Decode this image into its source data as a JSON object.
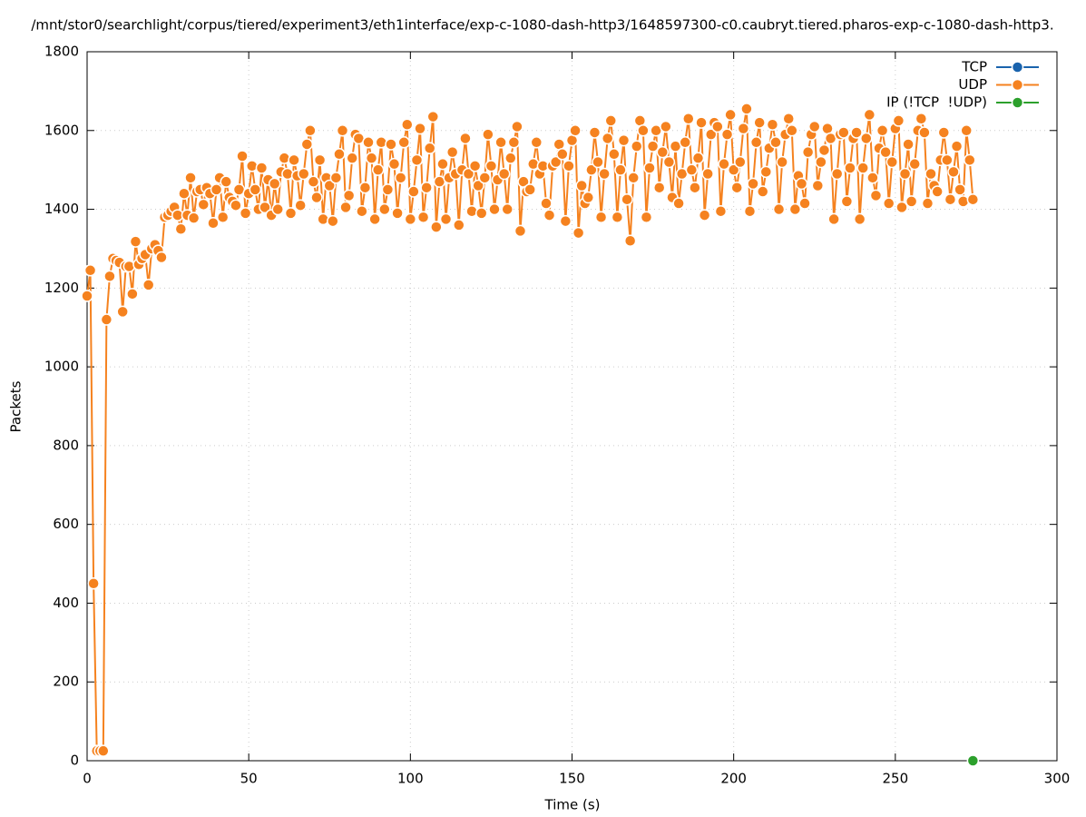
{
  "chart_data": {
    "type": "line",
    "title": "/mnt/stor0/searchlight/corpus/tiered/experiment3/eth1interface/exp-c-1080-dash-http3/1648597300-c0.caubryt.tiered.pharos-exp-c-1080-dash-http3.",
    "x_label": "Time (s)",
    "y_label": "Packets",
    "xlim": [
      0,
      300
    ],
    "xticks": [
      0,
      50,
      100,
      150,
      200,
      250,
      300
    ],
    "ylim": [
      0,
      1800
    ],
    "yticks": [
      0,
      200,
      400,
      600,
      800,
      1000,
      1200,
      1400,
      1600,
      1800
    ],
    "grid": true,
    "legend": "top right",
    "series": [
      {
        "name": "TCP",
        "color": "#1a63ad",
        "x": [],
        "values": []
      },
      {
        "name": "UDP",
        "color": "#f5821f",
        "x": [
          0,
          1,
          2,
          3,
          4,
          5,
          6,
          7,
          8,
          9,
          10,
          11,
          12,
          13,
          14,
          15,
          16,
          17,
          18,
          19,
          20,
          21,
          22,
          23,
          24,
          25,
          26,
          27,
          28,
          29,
          30,
          31,
          32,
          33,
          34,
          35,
          36,
          37,
          38,
          39,
          40,
          41,
          42,
          43,
          44,
          45,
          46,
          47,
          48,
          49,
          50,
          51,
          52,
          53,
          54,
          55,
          56,
          57,
          58,
          59,
          60,
          61,
          62,
          63,
          64,
          65,
          66,
          67,
          68,
          69,
          70,
          71,
          72,
          73,
          74,
          75,
          76,
          77,
          78,
          79,
          80,
          81,
          82,
          83,
          84,
          85,
          86,
          87,
          88,
          89,
          90,
          91,
          92,
          93,
          94,
          95,
          96,
          97,
          98,
          99,
          100,
          101,
          102,
          103,
          104,
          105,
          106,
          107,
          108,
          109,
          110,
          111,
          112,
          113,
          114,
          115,
          116,
          117,
          118,
          119,
          120,
          121,
          122,
          123,
          124,
          125,
          126,
          127,
          128,
          129,
          130,
          131,
          132,
          133,
          134,
          135,
          136,
          137,
          138,
          139,
          140,
          141,
          142,
          143,
          144,
          145,
          146,
          147,
          148,
          149,
          150,
          151,
          152,
          153,
          154,
          155,
          156,
          157,
          158,
          159,
          160,
          161,
          162,
          163,
          164,
          165,
          166,
          167,
          168,
          169,
          170,
          171,
          172,
          173,
          174,
          175,
          176,
          177,
          178,
          179,
          180,
          181,
          182,
          183,
          184,
          185,
          186,
          187,
          188,
          189,
          190,
          191,
          192,
          193,
          194,
          195,
          196,
          197,
          198,
          199,
          200,
          201,
          202,
          203,
          204,
          205,
          206,
          207,
          208,
          209,
          210,
          211,
          212,
          213,
          214,
          215,
          216,
          217,
          218,
          219,
          220,
          221,
          222,
          223,
          224,
          225,
          226,
          227,
          228,
          229,
          230,
          231,
          232,
          233,
          234,
          235,
          236,
          237,
          238,
          239,
          240,
          241,
          242,
          243,
          244,
          245,
          246,
          247,
          248,
          249,
          250,
          251,
          252,
          253,
          254,
          255,
          256,
          257,
          258,
          259,
          260,
          261,
          262,
          263,
          264,
          265,
          266,
          267,
          268,
          269,
          270,
          271,
          272,
          273,
          274
        ],
        "values": [
          1180,
          1245,
          450,
          25,
          25,
          25,
          1120,
          1230,
          1275,
          1270,
          1265,
          1140,
          1255,
          1255,
          1185,
          1318,
          1260,
          1275,
          1285,
          1208,
          1300,
          1310,
          1295,
          1278,
          1380,
          1385,
          1395,
          1405,
          1385,
          1350,
          1440,
          1385,
          1480,
          1378,
          1445,
          1450,
          1412,
          1455,
          1440,
          1365,
          1450,
          1480,
          1380,
          1470,
          1430,
          1420,
          1410,
          1450,
          1535,
          1390,
          1440,
          1510,
          1450,
          1400,
          1505,
          1405,
          1475,
          1385,
          1465,
          1400,
          1495,
          1530,
          1490,
          1390,
          1525,
          1485,
          1410,
          1490,
          1565,
          1600,
          1470,
          1430,
          1525,
          1375,
          1480,
          1460,
          1370,
          1480,
          1540,
          1600,
          1405,
          1435,
          1530,
          1590,
          1580,
          1395,
          1455,
          1570,
          1530,
          1375,
          1500,
          1570,
          1400,
          1450,
          1565,
          1515,
          1390,
          1480,
          1570,
          1615,
          1375,
          1445,
          1525,
          1605,
          1380,
          1455,
          1555,
          1635,
          1355,
          1470,
          1515,
          1375,
          1480,
          1545,
          1490,
          1360,
          1500,
          1580,
          1490,
          1395,
          1510,
          1460,
          1390,
          1480,
          1590,
          1510,
          1400,
          1475,
          1570,
          1490,
          1400,
          1530,
          1570,
          1610,
          1345,
          1470,
          1445,
          1450,
          1515,
          1570,
          1490,
          1510,
          1415,
          1385,
          1510,
          1520,
          1565,
          1540,
          1370,
          1510,
          1575,
          1600,
          1340,
          1460,
          1415,
          1430,
          1500,
          1595,
          1520,
          1380,
          1490,
          1580,
          1625,
          1540,
          1380,
          1500,
          1575,
          1425,
          1320,
          1480,
          1560,
          1625,
          1600,
          1380,
          1505,
          1560,
          1600,
          1455,
          1545,
          1610,
          1520,
          1430,
          1560,
          1415,
          1490,
          1570,
          1630,
          1500,
          1455,
          1530,
          1620,
          1385,
          1490,
          1590,
          1620,
          1610,
          1395,
          1515,
          1590,
          1640,
          1500,
          1455,
          1520,
          1605,
          1655,
          1395,
          1465,
          1570,
          1620,
          1445,
          1495,
          1555,
          1615,
          1570,
          1400,
          1520,
          1590,
          1630,
          1600,
          1400,
          1485,
          1465,
          1415,
          1545,
          1590,
          1610,
          1460,
          1520,
          1550,
          1605,
          1580,
          1375,
          1490,
          1590,
          1595,
          1420,
          1505,
          1580,
          1595,
          1375,
          1505,
          1580,
          1640,
          1480,
          1435,
          1555,
          1600,
          1545,
          1415,
          1520,
          1605,
          1625,
          1405,
          1490,
          1565,
          1420,
          1515,
          1600,
          1630,
          1595,
          1415,
          1490,
          1460,
          1445,
          1525,
          1595,
          1525,
          1425,
          1495,
          1560,
          1450,
          1420,
          1600,
          1525,
          1425
        ]
      },
      {
        "name": "IP (!TCP  !UDP)",
        "color": "#2ca02c",
        "x": [
          274
        ],
        "values": [
          0
        ]
      }
    ]
  }
}
